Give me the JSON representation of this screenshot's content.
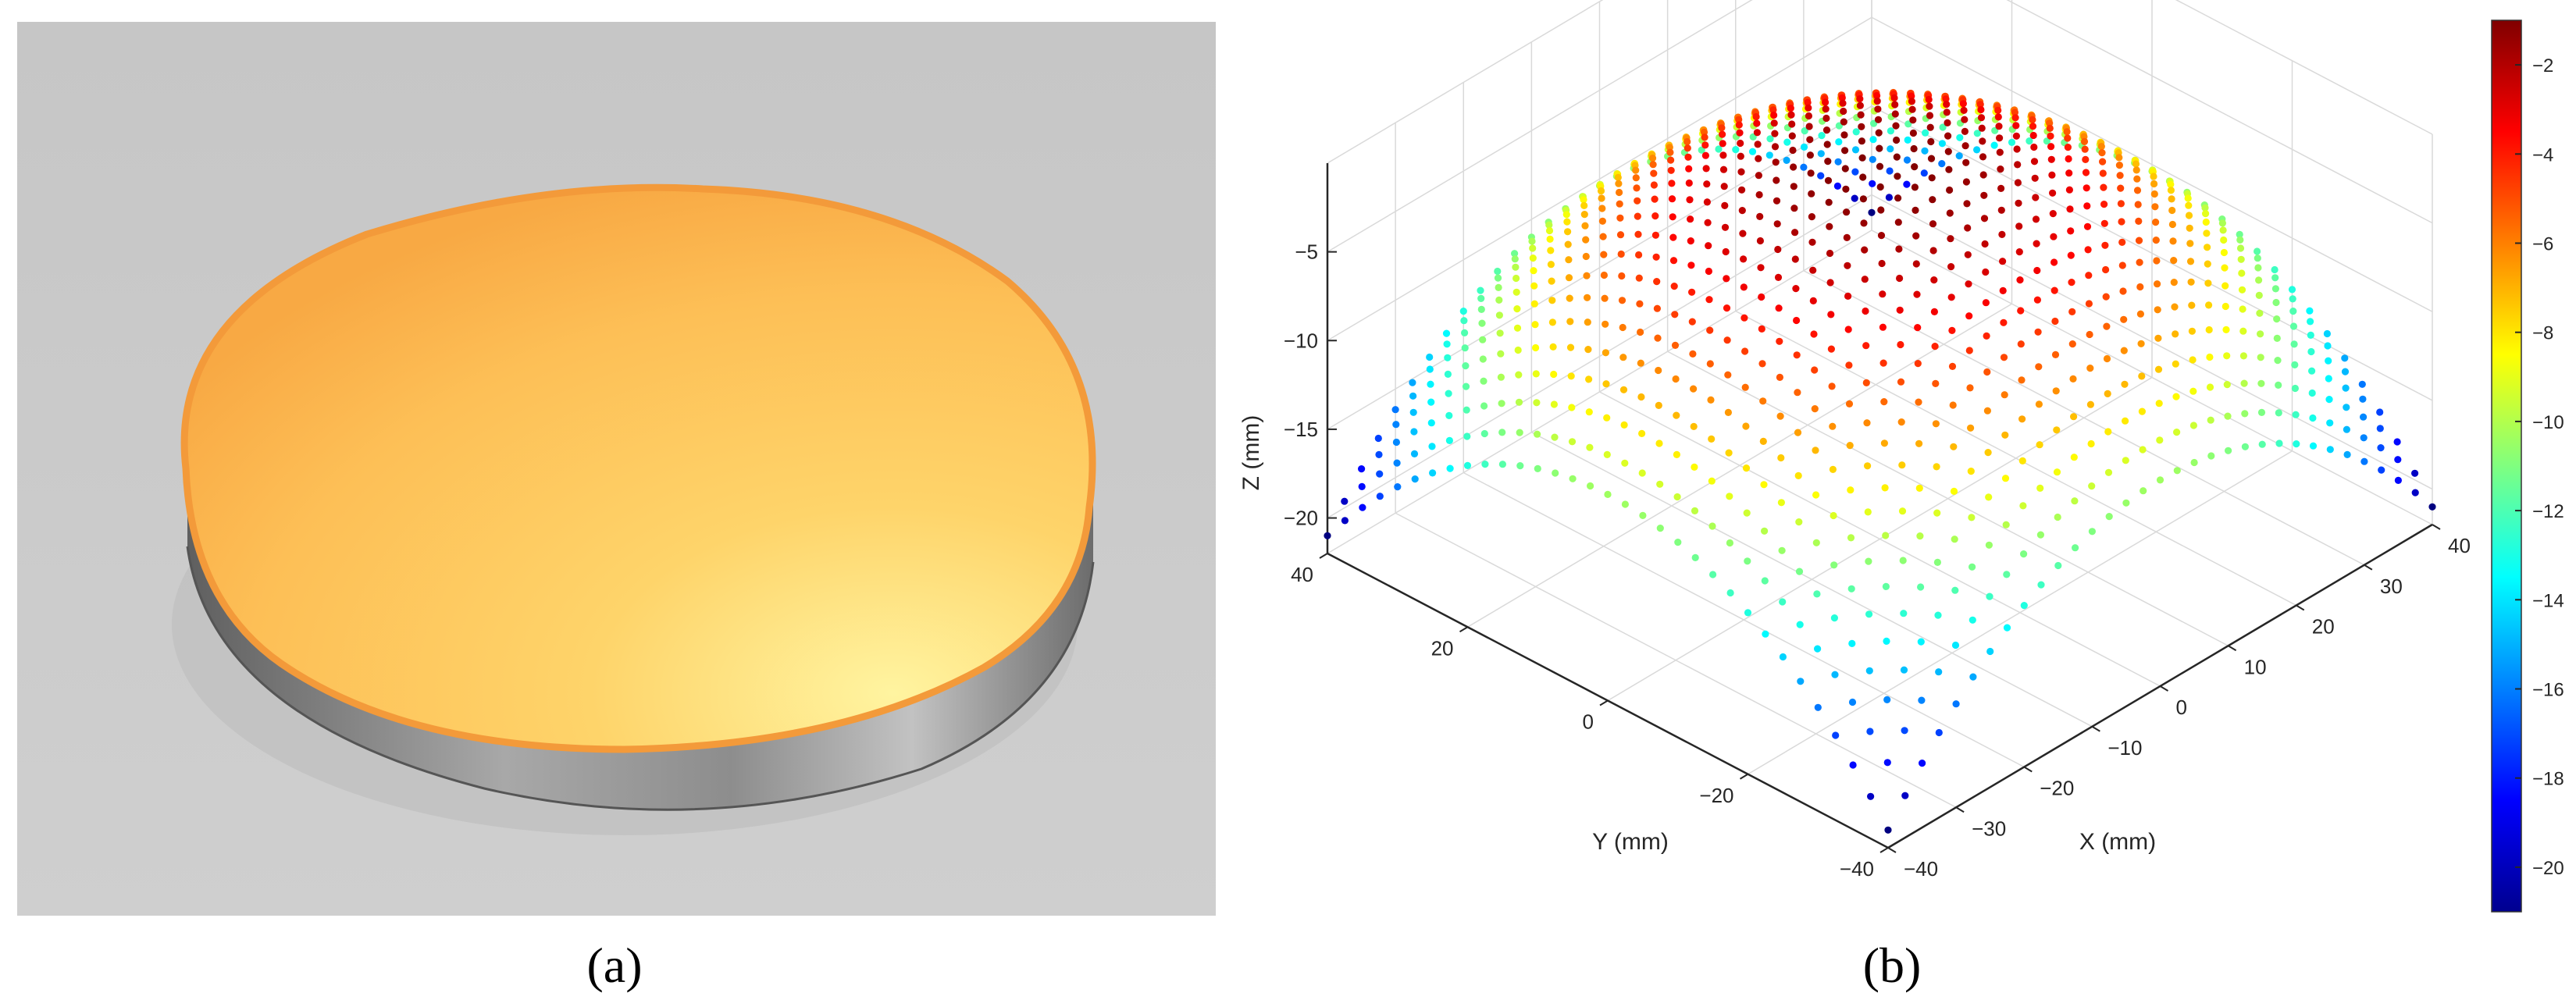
{
  "panels": {
    "a": {
      "label": "(a)",
      "description_colors": {
        "background": "#c8c8c8",
        "surface": "#f8b04e",
        "rim": "#f39a3a",
        "side": "#8a8a8a"
      }
    },
    "b": {
      "label": "(b)"
    }
  },
  "chart_data": {
    "type": "scatter",
    "subtype": "3d-point-cloud",
    "title": "",
    "xlabel": "X (mm)",
    "ylabel": "Y (mm)",
    "zlabel": "Z (mm)",
    "xlim": [
      -40,
      40
    ],
    "ylim": [
      -40,
      40
    ],
    "zlim": [
      -22,
      0
    ],
    "x_ticks": [
      -40,
      -30,
      -20,
      -10,
      0,
      10,
      20,
      30,
      40
    ],
    "y_ticks": [
      -40,
      -20,
      0,
      20,
      40
    ],
    "z_ticks": [
      -20,
      -15,
      -10,
      -5
    ],
    "grid": true,
    "colormap": "jet",
    "surface": {
      "shape": "spherical cap",
      "z_at_center": -1,
      "z_at_corners": -21,
      "sampling_step_mm": 2.5
    },
    "colorbar": {
      "range": [
        -21,
        -1
      ],
      "ticks": [
        -2,
        -4,
        -6,
        -8,
        -10,
        -12,
        -14,
        -16,
        -18,
        -20
      ],
      "placement": "right"
    }
  }
}
